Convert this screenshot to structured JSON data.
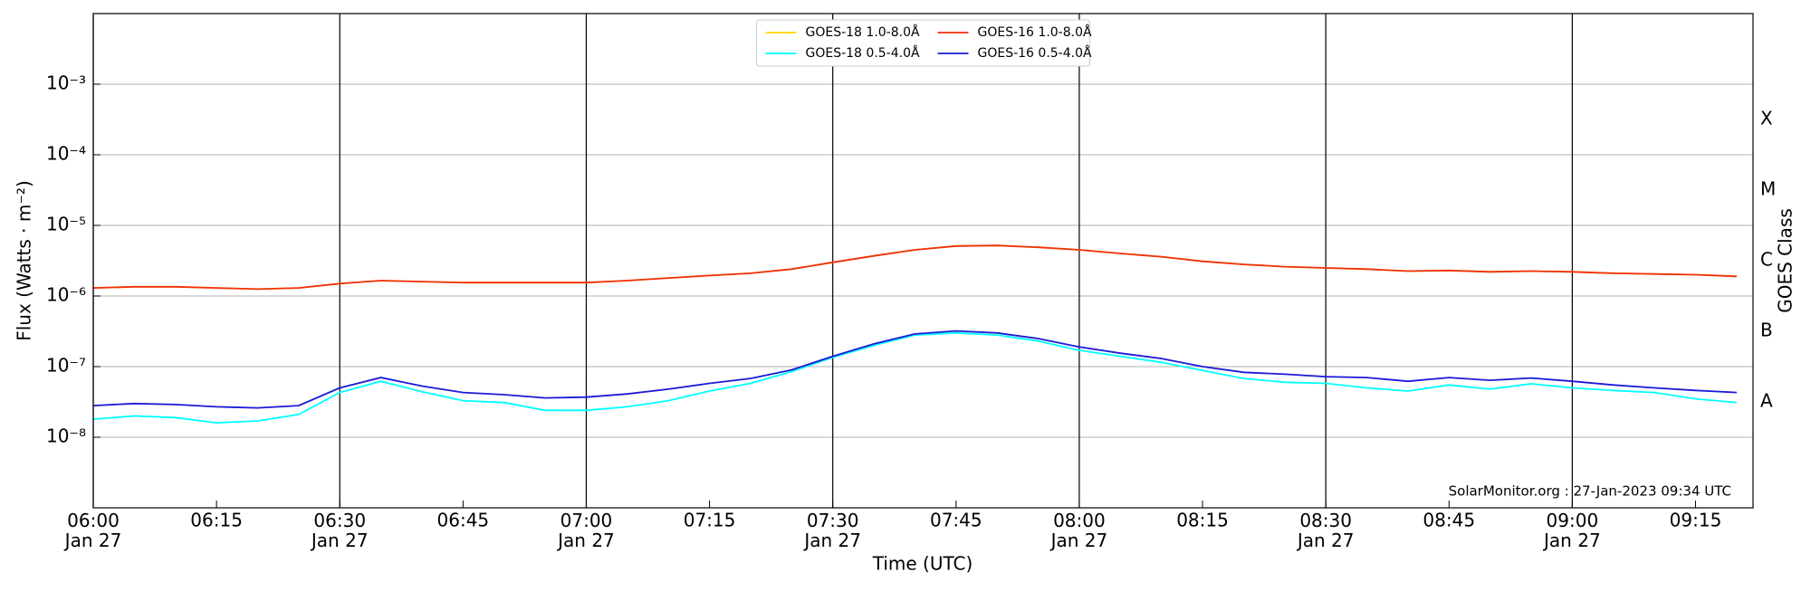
{
  "chart_data": {
    "type": "line",
    "xlabel": "Time (UTC)",
    "ylabel": "Flux (Watts · m⁻²)",
    "y2label": "GOES Class",
    "annotation": "SolarMonitor.org : 27-Jan-2023 09:34 UTC",
    "log_y": true,
    "grid": true,
    "legend": "upper center",
    "x": [
      "06:00",
      "06:05",
      "06:10",
      "06:15",
      "06:20",
      "06:25",
      "06:30",
      "06:35",
      "06:40",
      "06:45",
      "06:50",
      "06:55",
      "07:00",
      "07:05",
      "07:10",
      "07:15",
      "07:20",
      "07:25",
      "07:30",
      "07:35",
      "07:40",
      "07:45",
      "07:50",
      "07:55",
      "08:00",
      "08:05",
      "08:10",
      "08:15",
      "08:20",
      "08:25",
      "08:30",
      "08:35",
      "08:40",
      "08:45",
      "08:50",
      "08:55",
      "09:00",
      "09:05",
      "09:10",
      "09:15",
      "09:20"
    ],
    "xlim": [
      "06:00",
      "09:22"
    ],
    "xticks": [
      {
        "value": "06:00",
        "label": "06:00\nJan 27"
      },
      {
        "value": "06:15",
        "label": "06:15"
      },
      {
        "value": "06:30",
        "label": "06:30\nJan 27"
      },
      {
        "value": "06:45",
        "label": "06:45"
      },
      {
        "value": "07:00",
        "label": "07:00\nJan 27"
      },
      {
        "value": "07:15",
        "label": "07:15"
      },
      {
        "value": "07:30",
        "label": "07:30\nJan 27"
      },
      {
        "value": "07:45",
        "label": "07:45"
      },
      {
        "value": "08:00",
        "label": "08:00\nJan 27"
      },
      {
        "value": "08:15",
        "label": "08:15"
      },
      {
        "value": "08:30",
        "label": "08:30\nJan 27"
      },
      {
        "value": "08:45",
        "label": "08:45"
      },
      {
        "value": "09:00",
        "label": "09:00\nJan 27"
      },
      {
        "value": "09:15",
        "label": "09:15"
      }
    ],
    "ylim": [
      1e-09,
      0.01
    ],
    "yticks": [
      {
        "value": 1e-08,
        "label": "10⁻⁸"
      },
      {
        "value": 1e-07,
        "label": "10⁻⁷"
      },
      {
        "value": 1e-06,
        "label": "10⁻⁶"
      },
      {
        "value": 1e-05,
        "label": "10⁻⁵"
      },
      {
        "value": 0.0001,
        "label": "10⁻⁴"
      },
      {
        "value": 0.001,
        "label": "10⁻³"
      }
    ],
    "y2lim": [
      1e-09,
      0.01
    ],
    "y2ticks": [
      {
        "value": 3.16e-08,
        "label": "A"
      },
      {
        "value": 3.16e-07,
        "label": "B"
      },
      {
        "value": 3.16e-06,
        "label": "C"
      },
      {
        "value": 3.16e-05,
        "label": "M"
      },
      {
        "value": 0.000316,
        "label": "X"
      }
    ],
    "series": [
      {
        "name": "GOES-18 1.0-8.0Å",
        "color": "#ffd700",
        "values": [
          1.3e-06,
          1.35e-06,
          1.35e-06,
          1.3e-06,
          1.25e-06,
          1.3e-06,
          1.5e-06,
          1.65e-06,
          1.6e-06,
          1.55e-06,
          1.55e-06,
          1.55e-06,
          1.55e-06,
          1.65e-06,
          1.8e-06,
          1.95e-06,
          2.1e-06,
          2.4e-06,
          3e-06,
          3.7e-06,
          4.5e-06,
          5.1e-06,
          5.2e-06,
          4.9e-06,
          4.5e-06,
          4e-06,
          3.6e-06,
          3.1e-06,
          2.8e-06,
          2.6e-06,
          2.5e-06,
          2.4e-06,
          2.25e-06,
          2.3e-06,
          2.2e-06,
          2.25e-06,
          2.2e-06,
          2.1e-06,
          2.05e-06,
          2e-06,
          1.9e-06
        ]
      },
      {
        "name": "GOES-18 0.5-4.0Å",
        "color": "#00ffff",
        "values": [
          1.8e-08,
          2e-08,
          1.9e-08,
          1.6e-08,
          1.7e-08,
          2.1e-08,
          4.3e-08,
          6.2e-08,
          4.4e-08,
          3.3e-08,
          3.1e-08,
          2.4e-08,
          2.4e-08,
          2.7e-08,
          3.3e-08,
          4.5e-08,
          5.8e-08,
          8.5e-08,
          1.35e-07,
          2e-07,
          2.8e-07,
          3e-07,
          2.8e-07,
          2.3e-07,
          1.7e-07,
          1.4e-07,
          1.15e-07,
          8.8e-08,
          6.8e-08,
          6e-08,
          5.8e-08,
          5e-08,
          4.5e-08,
          5.5e-08,
          4.8e-08,
          5.7e-08,
          5e-08,
          4.6e-08,
          4.3e-08,
          3.5e-08,
          3.1e-08
        ]
      },
      {
        "name": "GOES-16 1.0-8.0Å",
        "color": "#f03010",
        "values": [
          1.3e-06,
          1.35e-06,
          1.35e-06,
          1.3e-06,
          1.25e-06,
          1.3e-06,
          1.5e-06,
          1.65e-06,
          1.6e-06,
          1.55e-06,
          1.55e-06,
          1.55e-06,
          1.55e-06,
          1.65e-06,
          1.8e-06,
          1.95e-06,
          2.1e-06,
          2.4e-06,
          3e-06,
          3.7e-06,
          4.5e-06,
          5.1e-06,
          5.2e-06,
          4.9e-06,
          4.5e-06,
          4e-06,
          3.6e-06,
          3.1e-06,
          2.8e-06,
          2.6e-06,
          2.5e-06,
          2.4e-06,
          2.25e-06,
          2.3e-06,
          2.2e-06,
          2.25e-06,
          2.2e-06,
          2.1e-06,
          2.05e-06,
          2e-06,
          1.9e-06
        ]
      },
      {
        "name": "GOES-16 0.5-4.0Å",
        "color": "#1a1ad8",
        "values": [
          2.8e-08,
          3e-08,
          2.9e-08,
          2.7e-08,
          2.6e-08,
          2.8e-08,
          5e-08,
          7e-08,
          5.3e-08,
          4.3e-08,
          4e-08,
          3.6e-08,
          3.7e-08,
          4.1e-08,
          4.8e-08,
          5.8e-08,
          6.8e-08,
          9e-08,
          1.4e-07,
          2.1e-07,
          2.9e-07,
          3.2e-07,
          3e-07,
          2.5e-07,
          1.9e-07,
          1.55e-07,
          1.3e-07,
          1e-07,
          8.3e-08,
          7.8e-08,
          7.2e-08,
          7e-08,
          6.2e-08,
          7e-08,
          6.4e-08,
          6.9e-08,
          6.2e-08,
          5.5e-08,
          5e-08,
          4.6e-08,
          4.3e-08
        ]
      }
    ]
  }
}
